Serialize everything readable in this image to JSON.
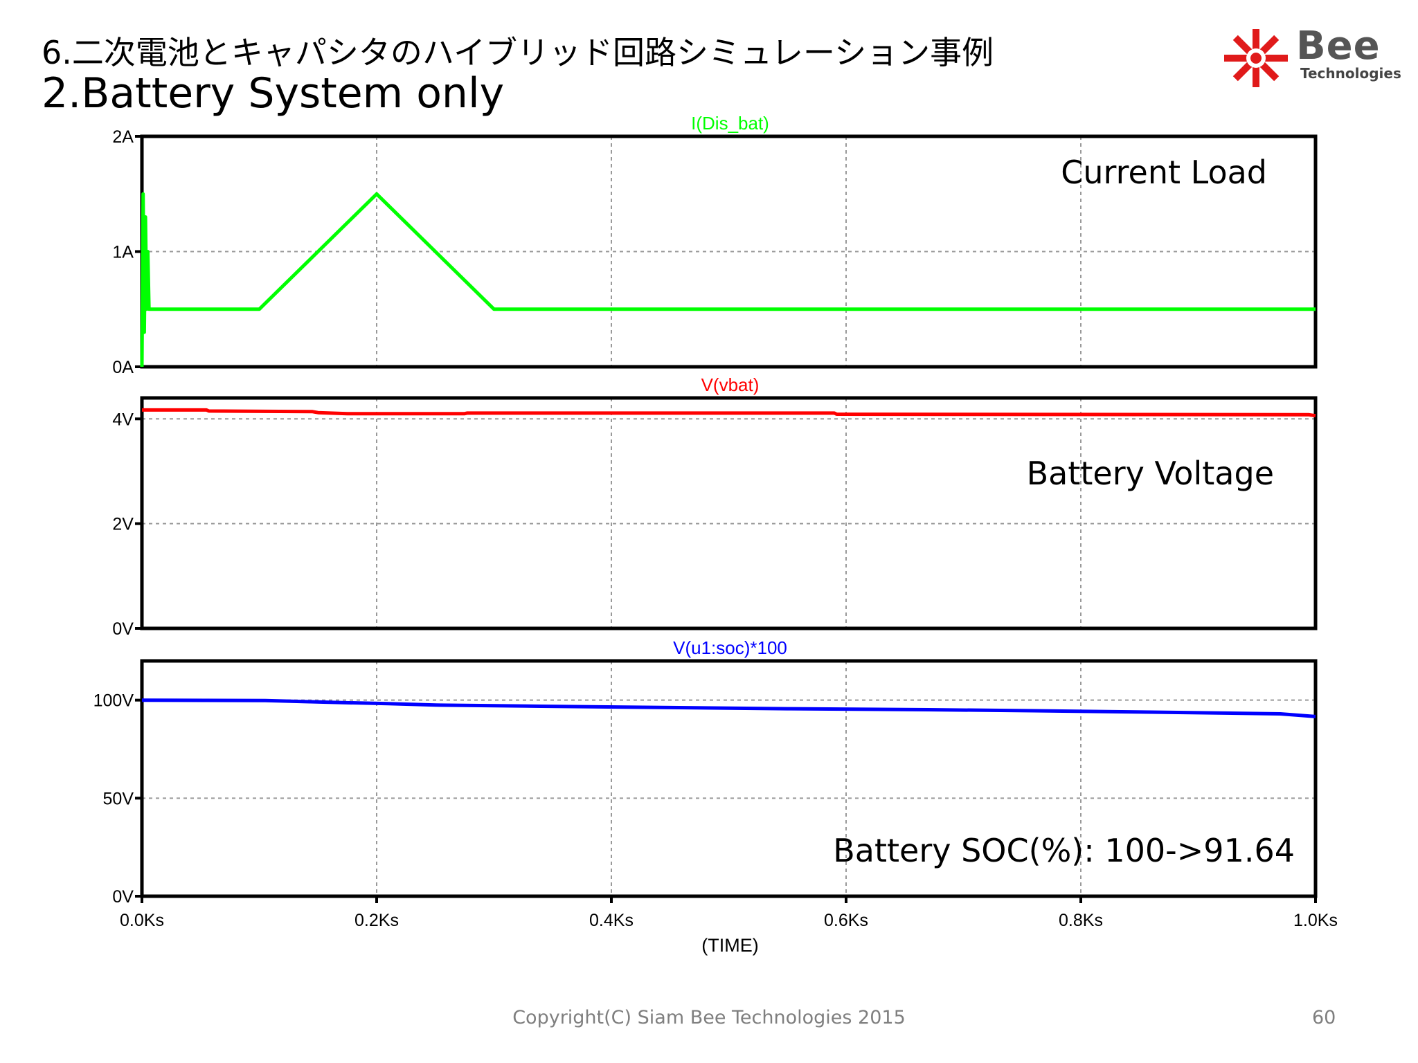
{
  "slide": {
    "title_jp": "6.二次電池とキャパシタのハイブリッド回路シミュレーション事例",
    "title_en": "2.Battery System only",
    "logo_word": "Bee",
    "logo_sub": "Technologies",
    "footer": "Copyright(C) Siam Bee Technologies 2015",
    "page_number": "60"
  },
  "chart_data": [
    {
      "type": "line",
      "trace_label": "I(Dis_bat)",
      "annotation": "Current Load",
      "color": "#00ff00",
      "ylim": [
        0,
        2
      ],
      "y_ticks": [
        {
          "v": 0,
          "label": "0A"
        },
        {
          "v": 1,
          "label": "1A"
        },
        {
          "v": 2,
          "label": "2A"
        }
      ],
      "x_ticks": [
        0,
        200,
        400,
        600,
        800,
        1000
      ],
      "series": [
        {
          "points": [
            [
              0,
              0
            ],
            [
              1,
              1.5
            ],
            [
              2,
              0.3
            ],
            [
              3,
              1.3
            ],
            [
              4,
              0.5
            ],
            [
              5,
              1.0
            ],
            [
              6,
              0.5
            ],
            [
              100,
              0.5
            ],
            [
              200,
              1.5
            ],
            [
              300,
              0.5
            ],
            [
              1000,
              0.5
            ]
          ]
        }
      ]
    },
    {
      "type": "line",
      "trace_label": "V(vbat)",
      "annotation": "Battery Voltage",
      "color": "#ff0000",
      "ylim": [
        0,
        4.4
      ],
      "y_ticks": [
        {
          "v": 0,
          "label": "0V"
        },
        {
          "v": 2,
          "label": "2V"
        },
        {
          "v": 4,
          "label": "4V"
        }
      ],
      "x_ticks": [
        0,
        200,
        400,
        600,
        800,
        1000
      ],
      "series": [
        {
          "points": [
            [
              0,
              4.17
            ],
            [
              55,
              4.17
            ],
            [
              57,
              4.15
            ],
            [
              145,
              4.14
            ],
            [
              150,
              4.12
            ],
            [
              175,
              4.1
            ],
            [
              275,
              4.1
            ],
            [
              277,
              4.11
            ],
            [
              590,
              4.11
            ],
            [
              592,
              4.09
            ],
            [
              994,
              4.08
            ],
            [
              1000,
              4.06
            ]
          ]
        }
      ]
    },
    {
      "type": "line",
      "trace_label": "V(u1:soc)*100",
      "annotation": "Battery SOC(%): 100->91.64",
      "color": "#0000ff",
      "ylim": [
        0,
        120
      ],
      "y_ticks": [
        {
          "v": 0,
          "label": "0V"
        },
        {
          "v": 50,
          "label": "50V"
        },
        {
          "v": 100,
          "label": "100V"
        }
      ],
      "x_ticks": [
        0,
        200,
        400,
        600,
        800,
        1000
      ],
      "x_tick_labels": [
        "0.0Ks",
        "0.2Ks",
        "0.4Ks",
        "0.6Ks",
        "0.8Ks",
        "1.0Ks"
      ],
      "xlabel": "(TIME)",
      "series": [
        {
          "points": [
            [
              0,
              100
            ],
            [
              105,
              99.8
            ],
            [
              160,
              98.9
            ],
            [
              210,
              98.2
            ],
            [
              250,
              97.5
            ],
            [
              340,
              96.9
            ],
            [
              450,
              96.2
            ],
            [
              550,
              95.6
            ],
            [
              670,
              95.1
            ],
            [
              760,
              94.6
            ],
            [
              860,
              93.9
            ],
            [
              970,
              93.0
            ],
            [
              1000,
              91.64
            ]
          ]
        }
      ]
    }
  ]
}
